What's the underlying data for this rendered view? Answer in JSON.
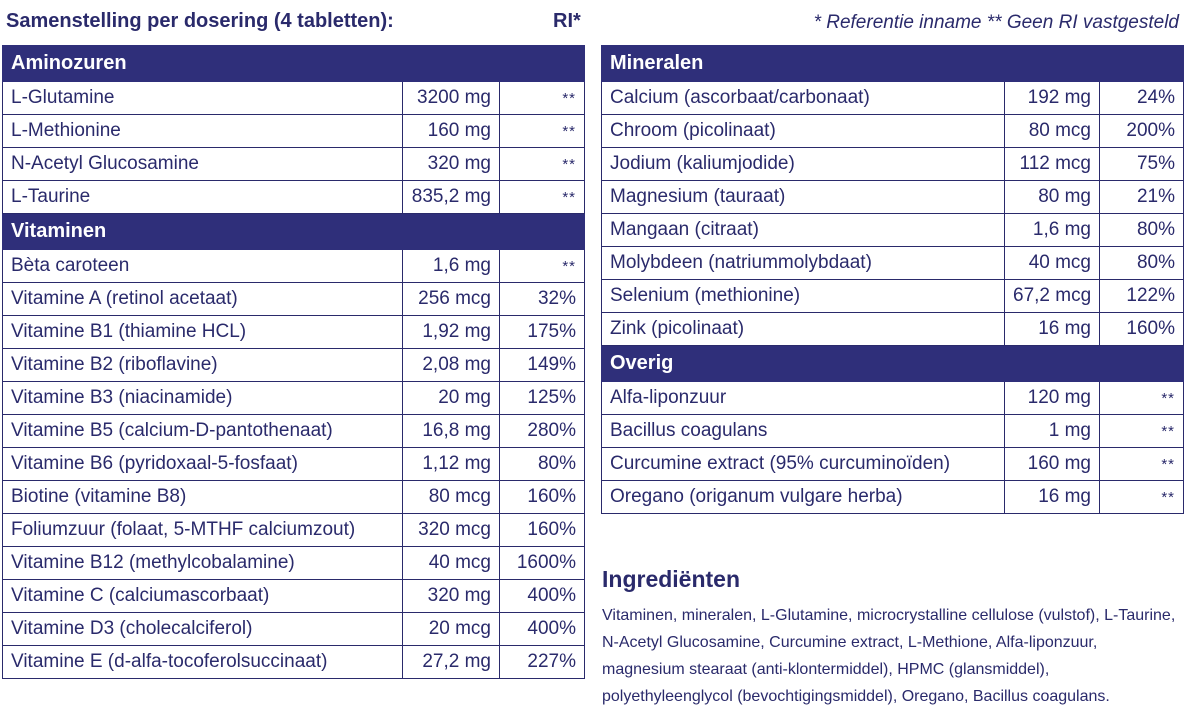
{
  "header": {
    "left": "Samenstelling per dosering (4 tabletten):",
    "ri": "RI*",
    "right": "* Referentie inname   ** Geen RI vastgesteld"
  },
  "left_table": {
    "sections": [
      {
        "title": "Aminozuren",
        "rows": [
          {
            "name": "L-Glutamine",
            "amount": "3200 mg",
            "ri": "**"
          },
          {
            "name": "L-Methionine",
            "amount": "160 mg",
            "ri": "**"
          },
          {
            "name": "N-Acetyl Glucosamine",
            "amount": "320 mg",
            "ri": "**"
          },
          {
            "name": "L-Taurine",
            "amount": "835,2 mg",
            "ri": "**"
          }
        ]
      },
      {
        "title": "Vitaminen",
        "rows": [
          {
            "name": "Bèta caroteen",
            "amount": "1,6 mg",
            "ri": "**"
          },
          {
            "name": "Vitamine A (retinol acetaat)",
            "amount": "256 mcg",
            "ri": "32%"
          },
          {
            "name": "Vitamine B1 (thiamine HCL)",
            "amount": "1,92 mg",
            "ri": "175%"
          },
          {
            "name": "Vitamine B2 (riboflavine)",
            "amount": "2,08 mg",
            "ri": "149%"
          },
          {
            "name": "Vitamine B3 (niacinamide)",
            "amount": "20 mg",
            "ri": "125%"
          },
          {
            "name": "Vitamine B5 (calcium-D-pantothenaat)",
            "amount": "16,8 mg",
            "ri": "280%"
          },
          {
            "name": "Vitamine B6 (pyridoxaal-5-fosfaat)",
            "amount": "1,12 mg",
            "ri": "80%"
          },
          {
            "name": "Biotine (vitamine B8)",
            "amount": "80 mcg",
            "ri": "160%"
          },
          {
            "name": "Foliumzuur (folaat, 5-MTHF calciumzout)",
            "amount": "320 mcg",
            "ri": "160%"
          },
          {
            "name": "Vitamine B12 (methylcobalamine)",
            "amount": "40 mcg",
            "ri": "1600%"
          },
          {
            "name": "Vitamine C (calciumascorbaat)",
            "amount": "320 mg",
            "ri": "400%"
          },
          {
            "name": "Vitamine D3 (cholecalciferol)",
            "amount": "20 mcg",
            "ri": "400%"
          },
          {
            "name": "Vitamine E (d-alfa-tocoferolsuccinaat)",
            "amount": "27,2 mg",
            "ri": "227%"
          }
        ]
      }
    ]
  },
  "right_table": {
    "sections": [
      {
        "title": "Mineralen",
        "rows": [
          {
            "name": "Calcium (ascorbaat/carbonaat)",
            "amount": "192 mg",
            "ri": "24%"
          },
          {
            "name": "Chroom (picolinaat)",
            "amount": "80 mcg",
            "ri": "200%"
          },
          {
            "name": "Jodium (kaliumjodide)",
            "amount": "112 mcg",
            "ri": "75%"
          },
          {
            "name": "Magnesium (tauraat)",
            "amount": "80 mg",
            "ri": "21%"
          },
          {
            "name": "Mangaan (citraat)",
            "amount": "1,6 mg",
            "ri": "80%"
          },
          {
            "name": "Molybdeen (natriummolybdaat)",
            "amount": "40 mcg",
            "ri": "80%"
          },
          {
            "name": "Selenium (methionine)",
            "amount": "67,2 mcg",
            "ri": "122%"
          },
          {
            "name": "Zink (picolinaat)",
            "amount": "16 mg",
            "ri": "160%"
          }
        ]
      },
      {
        "title": "Overig",
        "rows": [
          {
            "name": "Alfa-liponzuur",
            "amount": "120 mg",
            "ri": "**"
          },
          {
            "name": "Bacillus coagulans",
            "amount": "1 mg",
            "ri": "**"
          },
          {
            "name": "Curcumine extract (95% curcuminoïden)",
            "amount": "160 mg",
            "ri": "**"
          },
          {
            "name": "Oregano (origanum vulgare herba)",
            "amount": "16 mg",
            "ri": "**"
          }
        ]
      }
    ]
  },
  "ingredients": {
    "title": "Ingrediënten",
    "text": "Vitaminen, mineralen, L-Glutamine, microcrystalline cellulose (vulstof), L-Taurine, N-Acetyl Glucosamine, Curcumine extract, L-Methione, Alfa-liponzuur, magnesium stearaat (anti-klontermiddel), HPMC (glansmiddel), polyethyleenglycol (bevochtigingsmiddel), Oregano, Bacillus coagulans."
  }
}
